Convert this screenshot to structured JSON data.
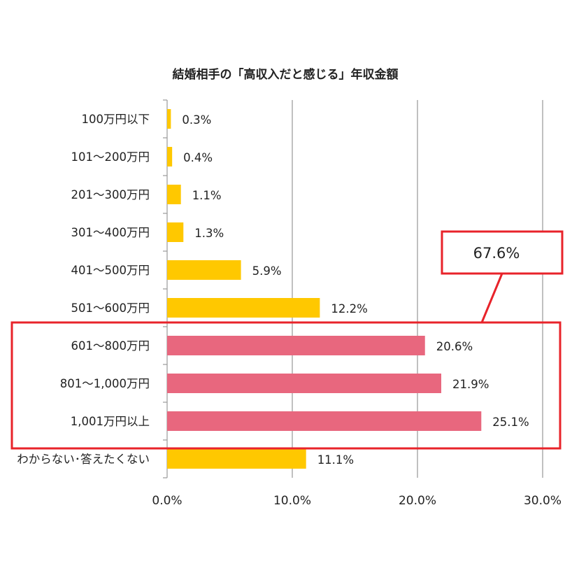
{
  "chart_data": {
    "type": "bar",
    "orientation": "horizontal",
    "title": "結婚相手の「高収入だと感じる」年収金額",
    "categories": [
      "100万円以下",
      "101～200万円",
      "201～300万円",
      "301～400万円",
      "401～500万円",
      "501～600万円",
      "601～800万円",
      "801～1,000万円",
      "1,001万円以上",
      "わからない･答えたくない"
    ],
    "values": [
      0.3,
      0.4,
      1.1,
      1.3,
      5.9,
      12.2,
      20.6,
      21.9,
      25.1,
      11.1
    ],
    "value_labels": [
      "0.3%",
      "0.4%",
      "1.1%",
      "1.3%",
      "5.9%",
      "12.2%",
      "20.6%",
      "21.9%",
      "25.1%",
      "11.1%"
    ],
    "highlighted": [
      false,
      false,
      false,
      false,
      false,
      false,
      true,
      true,
      true,
      false
    ],
    "xlim": [
      0,
      30
    ],
    "xticks": [
      "0.0%",
      "10.0%",
      "20.0%",
      "30.0%"
    ],
    "grid": true,
    "annotation": "67.6%",
    "colors": {
      "normal": "#FFC800",
      "highlight": "#E8677E",
      "callout": "#E8232A",
      "grid": "#808080",
      "axis": "#9A9A9A"
    }
  }
}
